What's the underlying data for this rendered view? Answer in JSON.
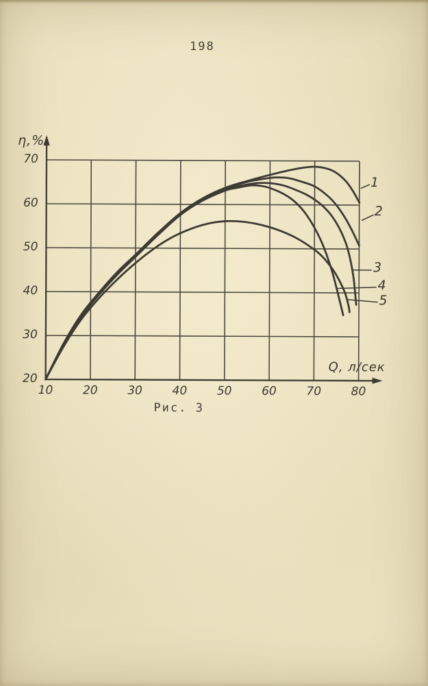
{
  "page": {
    "number": "198",
    "caption": "Рис. 3"
  },
  "chart_data": {
    "type": "line",
    "title": "",
    "xlabel": "Q, л/сек",
    "ylabel": "η,%",
    "xlim": [
      10,
      80
    ],
    "ylim": [
      20,
      70
    ],
    "x_ticks": [
      10,
      20,
      30,
      40,
      50,
      60,
      70,
      80
    ],
    "y_ticks": [
      20,
      30,
      40,
      50,
      60,
      70
    ],
    "grid": true,
    "legend_position": "right-margin-numbered",
    "colors": {
      "line": "#3d3a33",
      "grid": "#4b473e",
      "text": "#3b382f",
      "paper": "#ece3c2"
    },
    "series": [
      {
        "name": "1",
        "points": [
          [
            10,
            20
          ],
          [
            14,
            28
          ],
          [
            18,
            34.6
          ],
          [
            22,
            39.8
          ],
          [
            26,
            44.3
          ],
          [
            30,
            48.3
          ],
          [
            35,
            53.4
          ],
          [
            40,
            58
          ],
          [
            45,
            61.4
          ],
          [
            50,
            63.8
          ],
          [
            55,
            65.4
          ],
          [
            60,
            66.8
          ],
          [
            64,
            67.8
          ],
          [
            67,
            68.4
          ],
          [
            70,
            68.7
          ],
          [
            73,
            68.2
          ],
          [
            75,
            67.2
          ],
          [
            77,
            65.4
          ],
          [
            78.5,
            63.3
          ],
          [
            80,
            60.6
          ]
        ]
      },
      {
        "name": "2",
        "points": [
          [
            10,
            20
          ],
          [
            14,
            28.2
          ],
          [
            18,
            34.9
          ],
          [
            22,
            40
          ],
          [
            26,
            44.6
          ],
          [
            30,
            48.5
          ],
          [
            35,
            53.5
          ],
          [
            40,
            58
          ],
          [
            45,
            61.3
          ],
          [
            50,
            63.6
          ],
          [
            55,
            65.2
          ],
          [
            58,
            65.8
          ],
          [
            61,
            66.2
          ],
          [
            64,
            66.1
          ],
          [
            67,
            65.3
          ],
          [
            70,
            64.2
          ],
          [
            73,
            62
          ],
          [
            75,
            59.8
          ],
          [
            77,
            56.8
          ],
          [
            78.5,
            54
          ],
          [
            80,
            50.8
          ]
        ]
      },
      {
        "name": "3",
        "points": [
          [
            10,
            20
          ],
          [
            14,
            27.9
          ],
          [
            18,
            34.4
          ],
          [
            22,
            39.5
          ],
          [
            26,
            44
          ],
          [
            30,
            48
          ],
          [
            35,
            53
          ],
          [
            40,
            57.6
          ],
          [
            45,
            60.9
          ],
          [
            50,
            63.2
          ],
          [
            54,
            64.4
          ],
          [
            57,
            64.9
          ],
          [
            60,
            64.9
          ],
          [
            63,
            64.4
          ],
          [
            66,
            63.3
          ],
          [
            68,
            62.4
          ],
          [
            70,
            61.2
          ],
          [
            72,
            59.6
          ],
          [
            74,
            57.3
          ],
          [
            76,
            53.8
          ],
          [
            77.5,
            49.8
          ],
          [
            78.7,
            44
          ],
          [
            79.4,
            37.3
          ]
        ]
      },
      {
        "name": "4",
        "points": [
          [
            10,
            20
          ],
          [
            14,
            28
          ],
          [
            18,
            34.7
          ],
          [
            22,
            39.7
          ],
          [
            26,
            44.2
          ],
          [
            30,
            48.2
          ],
          [
            35,
            53.2
          ],
          [
            40,
            57.7
          ],
          [
            45,
            61
          ],
          [
            50,
            63.2
          ],
          [
            53,
            63.9
          ],
          [
            56,
            64.4
          ],
          [
            59,
            64.1
          ],
          [
            62,
            63
          ],
          [
            64,
            61.9
          ],
          [
            66,
            60.3
          ],
          [
            68,
            58
          ],
          [
            70,
            54.8
          ],
          [
            72,
            50.6
          ],
          [
            74,
            44.8
          ],
          [
            75.6,
            38.6
          ],
          [
            76.5,
            34.9
          ]
        ]
      },
      {
        "name": "5",
        "points": [
          [
            10,
            20
          ],
          [
            14,
            27.5
          ],
          [
            18,
            33.8
          ],
          [
            22,
            38.7
          ],
          [
            26,
            42.9
          ],
          [
            30,
            46.6
          ],
          [
            34,
            49.8
          ],
          [
            38,
            52.4
          ],
          [
            42,
            54.3
          ],
          [
            46,
            55.6
          ],
          [
            50,
            56.2
          ],
          [
            54,
            56.1
          ],
          [
            58,
            55.4
          ],
          [
            62,
            54.2
          ],
          [
            66,
            52.4
          ],
          [
            70,
            49.8
          ],
          [
            72,
            48
          ],
          [
            74,
            45.5
          ],
          [
            75.5,
            43
          ],
          [
            76.9,
            39.9
          ],
          [
            77.7,
            37
          ],
          [
            77.9,
            35.6
          ]
        ]
      }
    ],
    "curve_labels": [
      {
        "text": "1",
        "line": [
          [
            80.3,
            63.8
          ],
          [
            82.3,
            64.7
          ]
        ],
        "pos": [
          83.4,
          64.9
        ]
      },
      {
        "text": "2",
        "line": [
          [
            80.5,
            56.5
          ],
          [
            83.2,
            57.8
          ]
        ],
        "pos": [
          84.3,
          58.3
        ]
      },
      {
        "text": "3",
        "line": [
          [
            78.7,
            45.2
          ],
          [
            82.8,
            45.2
          ]
        ],
        "pos": [
          84.1,
          45.5
        ]
      },
      {
        "text": "4",
        "line": [
          [
            75.0,
            41.0
          ],
          [
            83.9,
            41.3
          ]
        ],
        "pos": [
          85.1,
          41.4
        ]
      },
      {
        "text": "5",
        "line": [
          [
            77.2,
            38.5
          ],
          [
            84.2,
            37.9
          ]
        ],
        "pos": [
          85.4,
          37.9
        ]
      }
    ]
  }
}
